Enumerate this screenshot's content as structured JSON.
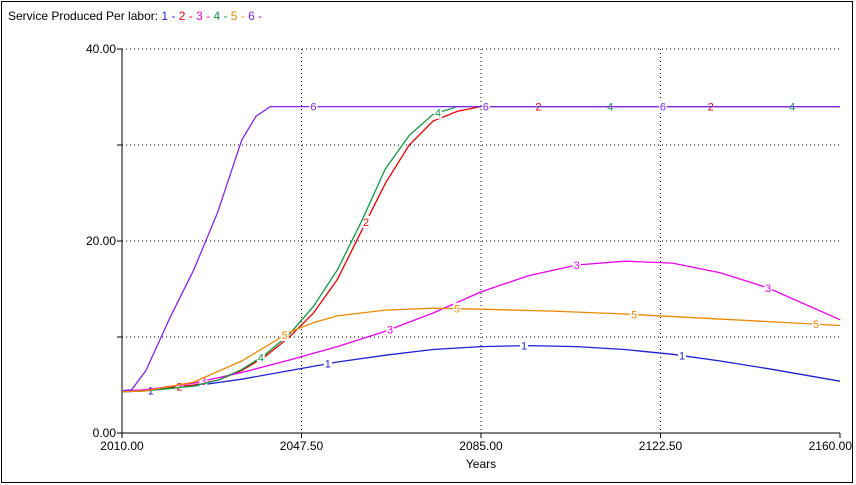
{
  "chart_data": {
    "type": "line",
    "title": "Service Produced",
    "legend_prefix": "Per labor:",
    "legend_placement": "top-left",
    "xlabel": "Years",
    "ylabel": "",
    "xlim": [
      2010,
      2160
    ],
    "ylim": [
      0,
      40
    ],
    "grid": true,
    "x_ticks": [
      {
        "value": 2010,
        "label": "2010.00"
      },
      {
        "value": 2047.5,
        "label": "2047.50"
      },
      {
        "value": 2085,
        "label": "2085.00"
      },
      {
        "value": 2122.5,
        "label": "2122.50"
      },
      {
        "value": 2160,
        "label": "2160.00"
      }
    ],
    "y_ticks": [
      {
        "value": 0,
        "label": "0.00"
      },
      {
        "value": 10,
        "label": ""
      },
      {
        "value": 20,
        "label": "20.00"
      },
      {
        "value": 30,
        "label": ""
      },
      {
        "value": 40,
        "label": "40.00"
      }
    ],
    "series": [
      {
        "name": "1",
        "color": "#1f1fd6",
        "x": [
          2005,
          2015,
          2025,
          2035,
          2045,
          2055,
          2065,
          2075,
          2085,
          2095,
          2105,
          2115,
          2125,
          2135,
          2145,
          2160
        ],
        "y": [
          4.2,
          4.4,
          4.9,
          5.6,
          6.5,
          7.4,
          8.1,
          8.7,
          9.0,
          9.1,
          9.0,
          8.7,
          8.2,
          7.5,
          6.7,
          5.4
        ],
        "label_x": [
          2016,
          2053,
          2094,
          2127
        ]
      },
      {
        "name": "2",
        "color": "#ee0000",
        "x": [
          2005,
          2015,
          2025,
          2030,
          2035,
          2040,
          2045,
          2050,
          2055,
          2060,
          2065,
          2070,
          2075,
          2080,
          2085,
          2100,
          2130,
          2160
        ],
        "y": [
          4.2,
          4.5,
          5.0,
          5.5,
          6.5,
          8.0,
          10.0,
          12.5,
          16.0,
          21.0,
          26.0,
          30.0,
          32.5,
          33.5,
          34.0,
          34.0,
          34.0,
          34.0
        ],
        "label_x": [
          2022,
          2061,
          2097,
          2133
        ]
      },
      {
        "name": "3",
        "color": "#ee00ee",
        "x": [
          2005,
          2015,
          2025,
          2035,
          2045,
          2055,
          2065,
          2075,
          2085,
          2095,
          2105,
          2115,
          2125,
          2135,
          2145,
          2160
        ],
        "y": [
          4.2,
          4.5,
          5.2,
          6.3,
          7.6,
          9.0,
          10.6,
          12.5,
          14.7,
          16.4,
          17.5,
          17.9,
          17.7,
          16.7,
          15.1,
          11.8
        ],
        "label_x": [
          2027,
          2066,
          2105,
          2145
        ]
      },
      {
        "name": "4",
        "color": "#119944",
        "x": [
          2005,
          2015,
          2025,
          2030,
          2035,
          2040,
          2045,
          2050,
          2055,
          2060,
          2065,
          2070,
          2075,
          2080,
          2085,
          2100,
          2130,
          2160
        ],
        "y": [
          4.2,
          4.4,
          4.9,
          5.5,
          6.6,
          8.2,
          10.3,
          13.2,
          17.0,
          22.0,
          27.5,
          31.0,
          33.2,
          34.0,
          34.0,
          34.0,
          34.0,
          34.0
        ],
        "label_x": [
          2039,
          2076,
          2112,
          2150
        ]
      },
      {
        "name": "5",
        "color": "#ee8800",
        "x": [
          2005,
          2015,
          2025,
          2035,
          2045,
          2050,
          2055,
          2065,
          2075,
          2085,
          2100,
          2115,
          2130,
          2145,
          2160
        ],
        "y": [
          4.2,
          4.4,
          5.3,
          7.5,
          10.5,
          11.5,
          12.2,
          12.8,
          13.0,
          12.9,
          12.7,
          12.4,
          12.0,
          11.6,
          11.2
        ],
        "label_x": [
          2044,
          2080,
          2117,
          2155
        ]
      },
      {
        "name": "6",
        "color": "#8822ee",
        "x": [
          2005,
          2012,
          2015,
          2020,
          2025,
          2030,
          2035,
          2038,
          2041,
          2045,
          2060,
          2100,
          2160
        ],
        "y": [
          4.2,
          4.5,
          6.5,
          12.0,
          17.0,
          23.0,
          30.5,
          33.0,
          34.0,
          34.0,
          34.0,
          34.0,
          34.0
        ],
        "label_x": [
          2050,
          2086,
          2123
        ]
      }
    ]
  }
}
